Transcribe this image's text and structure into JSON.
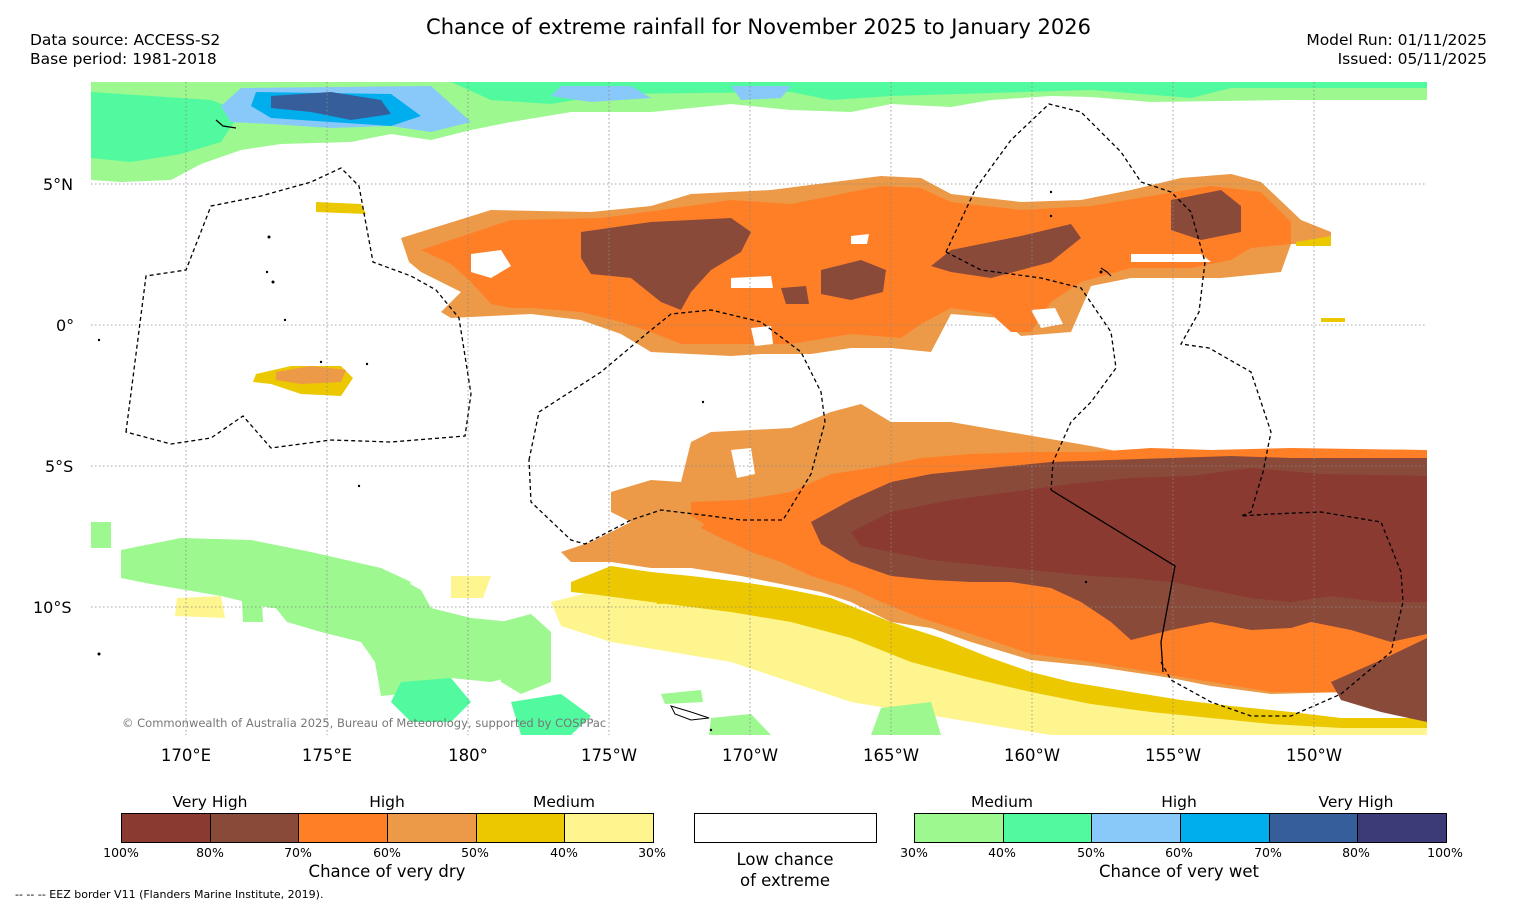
{
  "title": "Chance of extreme rainfall for November 2025 to January 2026",
  "header": {
    "data_source": "Data source: ACCESS-S2",
    "base_period": "Base period: 1981-2018",
    "model_run": "Model Run: 01/11/2025",
    "issued": "Issued: 05/11/2025"
  },
  "map": {
    "lat_labels": [
      "5°N",
      "0°",
      "5°S",
      "10°S"
    ],
    "lon_labels": [
      "170°E",
      "175°E",
      "180°",
      "175°W",
      "170°W",
      "165°W",
      "160°W",
      "155°W",
      "150°W"
    ],
    "copyright": "© Commonwealth of Australia 2025, Bureau of Meteorology, supported by COSPPac",
    "colors": {
      "dry_100_80": "#8a3a30",
      "dry_80_70": "#8a4a3a",
      "dry_70_60": "#ff7f27",
      "dry_60_50": "#ec9a48",
      "dry_50_40": "#ecc800",
      "dry_40_30": "#fff58e",
      "wet_30_40": "#9cf88f",
      "wet_40_50": "#52fa9f",
      "wet_50_60": "#88c9fa",
      "wet_60_70": "#00aeee",
      "wet_70_80": "#355e9a",
      "wet_80_100": "#3d3a78"
    }
  },
  "legend": {
    "dry": {
      "categories": [
        "Very High",
        "High",
        "Medium"
      ],
      "ticks": [
        "100%",
        "80%",
        "70%",
        "60%",
        "50%",
        "40%",
        "30%"
      ],
      "label": "Chance of very dry",
      "colors": [
        "#8a3a30",
        "#8a4a3a",
        "#ff7f27",
        "#ec9a48",
        "#ecc800",
        "#fff58e"
      ]
    },
    "low": {
      "label_line1": "Low chance",
      "label_line2": "of extreme"
    },
    "wet": {
      "categories": [
        "Medium",
        "High",
        "Very High"
      ],
      "ticks": [
        "30%",
        "40%",
        "50%",
        "60%",
        "70%",
        "80%",
        "100%"
      ],
      "label": "Chance of very wet",
      "colors": [
        "#9cf88f",
        "#52fa9f",
        "#88c9fa",
        "#00aeee",
        "#355e9a",
        "#3d3a78"
      ]
    }
  },
  "footnote": "-- -- -- EEZ border V11 (Flanders Marine Institute, 2019)."
}
